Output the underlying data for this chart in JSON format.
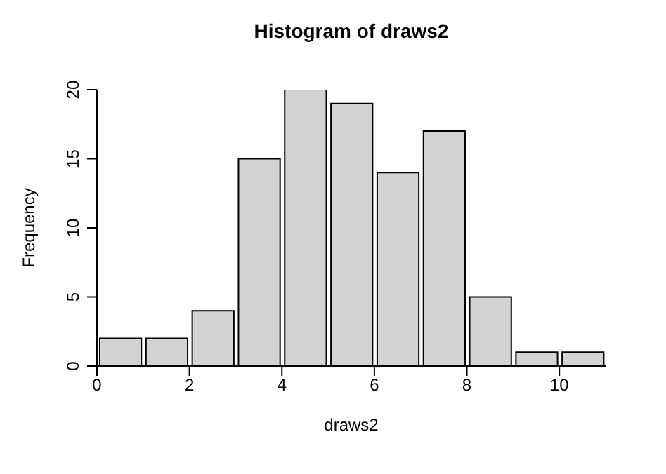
{
  "chart_data": {
    "type": "histogram",
    "title": "Histogram of draws2",
    "xlabel": "draws2",
    "ylabel": "Frequency",
    "bins": [
      0,
      1,
      2,
      3,
      4,
      5,
      6,
      7,
      8,
      9,
      10,
      11
    ],
    "values": [
      2,
      2,
      4,
      15,
      20,
      19,
      14,
      17,
      5,
      1,
      1
    ],
    "color": "#d3d3d3",
    "xlim": [
      0,
      11
    ],
    "xticks": [
      0,
      2,
      4,
      6,
      8,
      10
    ],
    "ylim": [
      0,
      20
    ],
    "yticks": [
      0,
      5,
      10,
      15,
      20
    ],
    "grid": false
  }
}
